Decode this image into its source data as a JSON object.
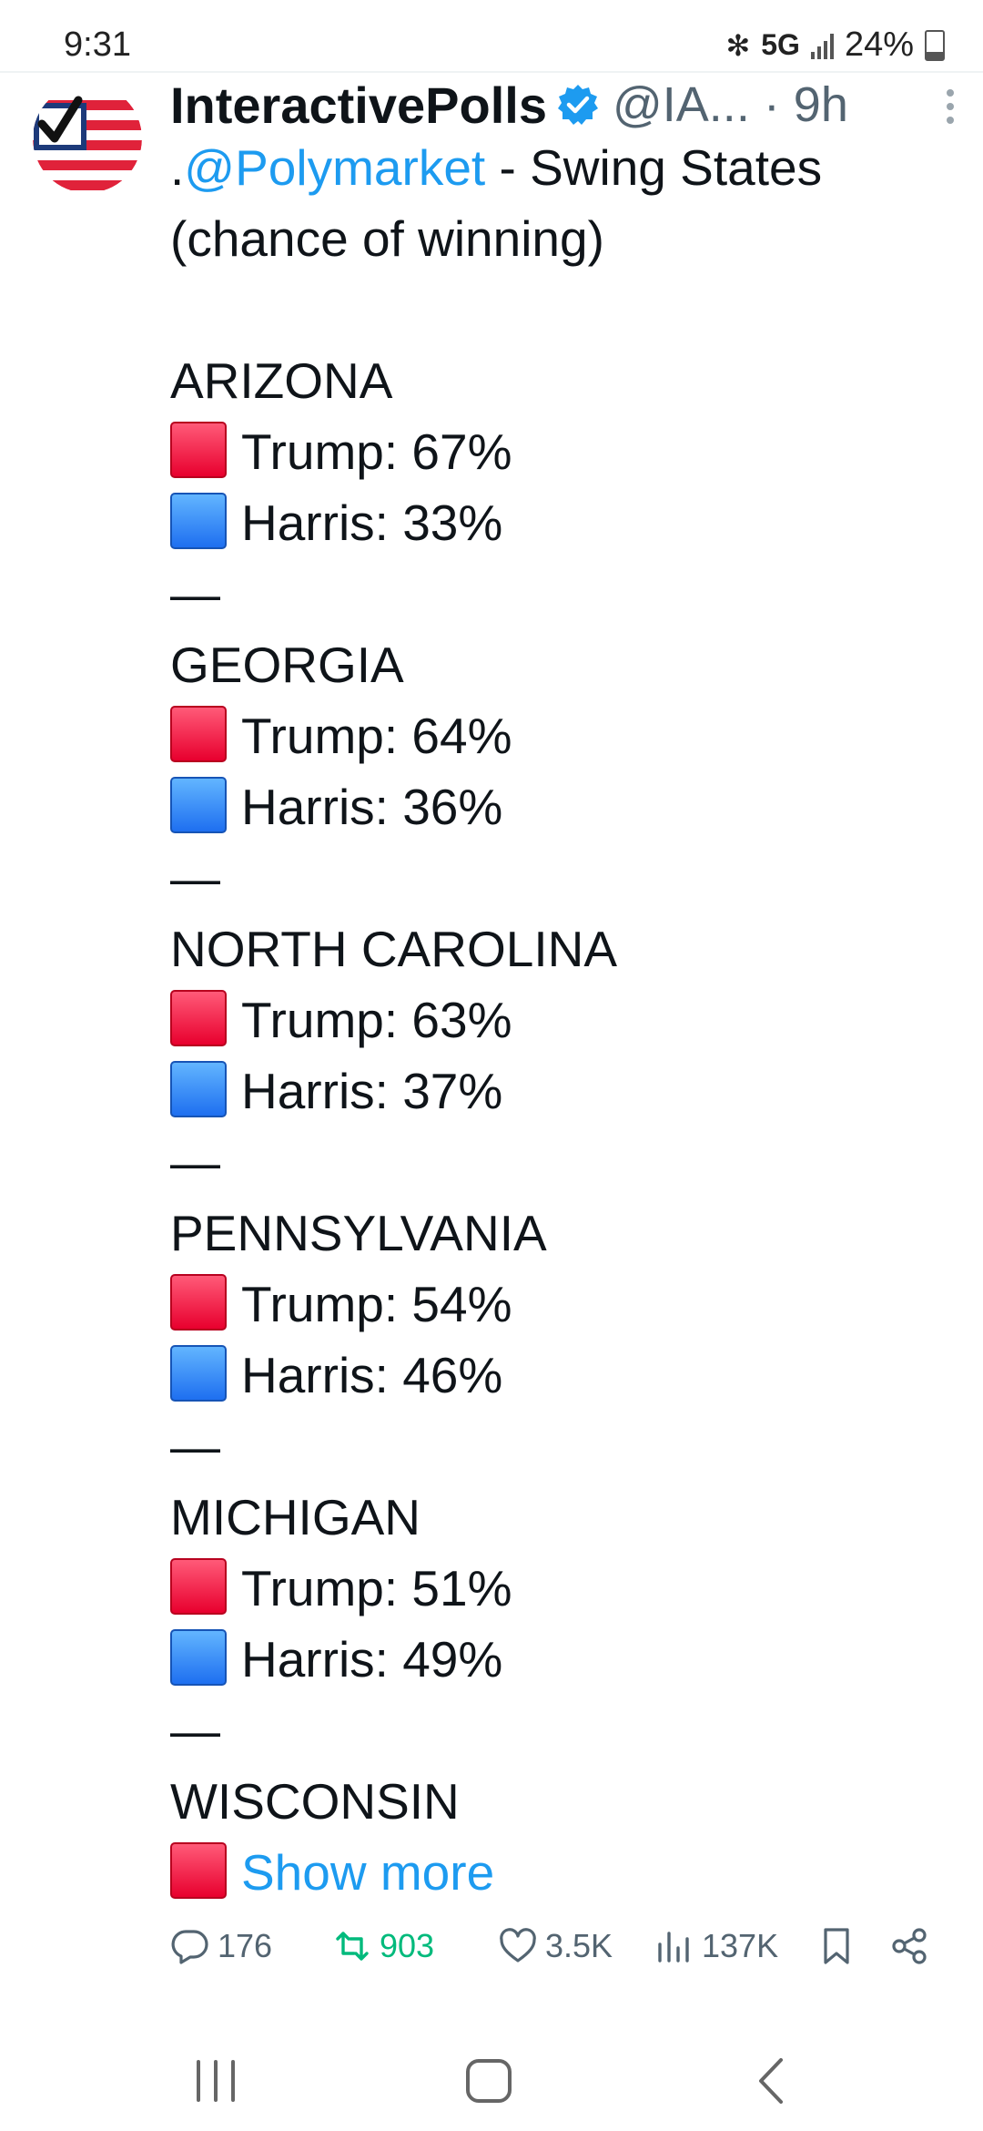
{
  "status_bar": {
    "time": "9:31",
    "network": "5G",
    "battery": "24%"
  },
  "tweet": {
    "author_name": "InteractivePolls",
    "handle_time": "@IA... · 9h",
    "intro_prefix": ".",
    "intro_link": "@Polymarket",
    "intro_rest": " - Swing States",
    "intro_line2": "(chance of winning)",
    "separator": "—",
    "states": [
      {
        "name": "ARIZONA",
        "trump": "Trump: 67%",
        "harris": "Harris: 33%"
      },
      {
        "name": "GEORGIA",
        "trump": "Trump: 64%",
        "harris": "Harris: 36%"
      },
      {
        "name": "NORTH CAROLINA",
        "trump": "Trump: 63%",
        "harris": "Harris: 37%"
      },
      {
        "name": "PENNSYLVANIA",
        "trump": "Trump: 54%",
        "harris": "Harris: 46%"
      },
      {
        "name": "MICHIGAN",
        "trump": "Trump: 51%",
        "harris": "Harris: 49%"
      }
    ],
    "last_state": "WISCONSIN",
    "show_more": "Show more"
  },
  "actions": {
    "replies": "176",
    "reposts": "903",
    "likes": "3.5K",
    "views": "137K"
  },
  "colors": {
    "link": "#1d9bf0",
    "repost": "#00ba7c",
    "muted": "#536471",
    "trump": "#e8002e",
    "harris": "#1e6ff0"
  },
  "icons": [
    "reply-icon",
    "repost-icon",
    "like-icon",
    "views-icon",
    "bookmark-icon",
    "share-icon",
    "verified-badge-icon",
    "more-options-icon"
  ]
}
